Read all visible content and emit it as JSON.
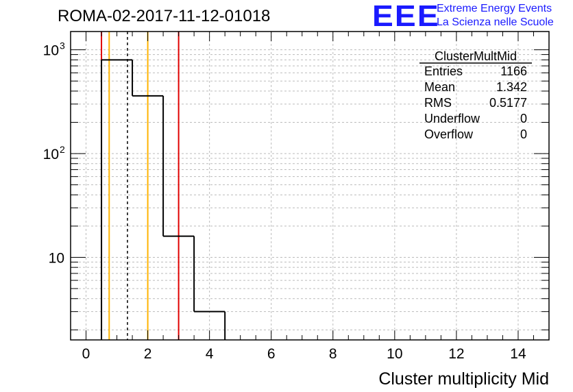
{
  "header": {
    "title": "ROMA-02-2017-11-12-01018",
    "logo_mark": "EEE",
    "logo_line1": "Extreme Energy Events",
    "logo_line2": "La Scienza nelle Scuole"
  },
  "chart_data": {
    "type": "bar",
    "histogram": true,
    "xlabel": "Cluster multiplicity Mid",
    "ylabel": "",
    "xlim": [
      -0.5,
      15
    ],
    "ylim": [
      1.6,
      1500
    ],
    "yscale": "log",
    "grid": true,
    "x_ticks": [
      0,
      2,
      4,
      6,
      8,
      10,
      12,
      14
    ],
    "y_tick_labels": [
      {
        "value": 10,
        "base": "10",
        "exp": ""
      },
      {
        "value": 100,
        "base": "10",
        "exp": "2"
      },
      {
        "value": 1000,
        "base": "10",
        "exp": "3"
      }
    ],
    "bins": [
      {
        "low": 0.5,
        "high": 1.5,
        "value": 800
      },
      {
        "low": 1.5,
        "high": 2.5,
        "value": 360
      },
      {
        "low": 2.5,
        "high": 3.5,
        "value": 16
      },
      {
        "low": 3.5,
        "high": 4.5,
        "value": 3
      }
    ],
    "markers": [
      {
        "x": 0.5,
        "color": "#e00000",
        "style": "solid"
      },
      {
        "x": 3.0,
        "color": "#e00000",
        "style": "solid"
      },
      {
        "x": 0.75,
        "color": "#ffb300",
        "style": "solid"
      },
      {
        "x": 2.0,
        "color": "#ffb300",
        "style": "solid"
      },
      {
        "x": 1.342,
        "color": "#000000",
        "style": "dashed"
      }
    ],
    "stats": {
      "name": "ClusterMultMid",
      "rows": [
        {
          "label": "Entries",
          "value": "1166"
        },
        {
          "label": "Mean",
          "value": "1.342"
        },
        {
          "label": "RMS",
          "value": "0.5177"
        },
        {
          "label": "Underflow",
          "value": "0"
        },
        {
          "label": "Overflow",
          "value": "0"
        }
      ]
    },
    "legend": "top-right"
  }
}
